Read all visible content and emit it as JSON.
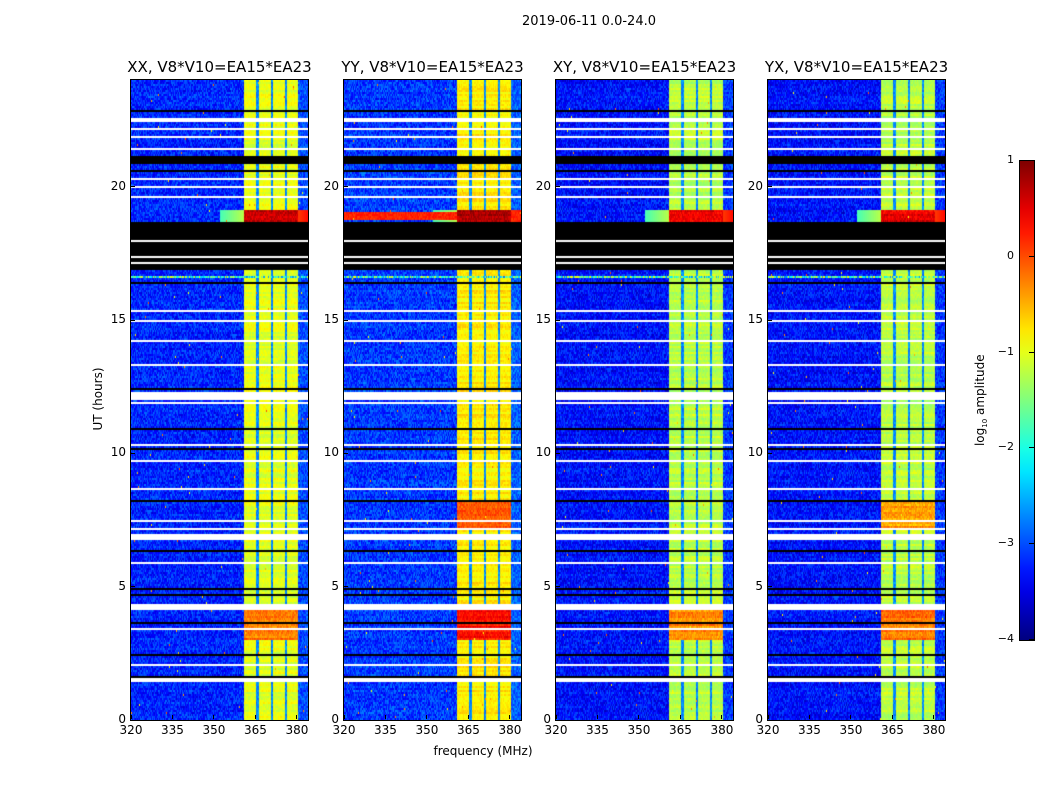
{
  "figure": {
    "suptitle": "2019-06-11 0.0-24.0",
    "xlabel": "frequency (MHz)",
    "ylabel": "UT (hours)"
  },
  "chart_data": {
    "type": "heatmap",
    "title": "2019-06-11 0.0-24.0",
    "xlabel": "frequency (MHz)",
    "ylabel": "UT (hours)",
    "xlim": [
      320,
      384
    ],
    "ylim": [
      0,
      24
    ],
    "xticks": [
      "320",
      "335",
      "350",
      "365",
      "380"
    ],
    "xtick_values": [
      320,
      335,
      350,
      365,
      380
    ],
    "yticks": [
      "0",
      "5",
      "10",
      "15",
      "20"
    ],
    "ytick_values": [
      0,
      5,
      10,
      15,
      20
    ],
    "colorbar": {
      "label": "log10 amplitude",
      "label_main": "log",
      "label_sub": "10",
      "label_rest": " amplitude",
      "range": [
        -4,
        1
      ],
      "ticks": [
        "1",
        "0",
        "−1",
        "−2",
        "−3",
        "−4"
      ],
      "tick_values": [
        1,
        0,
        -1,
        -2,
        -3,
        -4
      ],
      "colormap": "jet"
    },
    "panels": [
      {
        "title": "XX, V8*V10=EA15*EA23",
        "pol": "XX",
        "background_level": -3.2,
        "band_level": -1.0,
        "hot_ranges": [
          [
            18.7,
            19.1,
            0.6
          ],
          [
            3.0,
            4.1,
            -0.2
          ]
        ]
      },
      {
        "title": "YY, V8*V10=EA15*EA23",
        "pol": "YY",
        "background_level": -3.1,
        "band_level": -0.8,
        "hot_ranges": [
          [
            18.7,
            19.1,
            0.8
          ],
          [
            3.0,
            4.1,
            0.3
          ],
          [
            7.2,
            8.2,
            0.0
          ]
        ]
      },
      {
        "title": "XY, V8*V10=EA15*EA23",
        "pol": "XY",
        "background_level": -3.3,
        "band_level": -1.2,
        "hot_ranges": [
          [
            18.7,
            19.1,
            0.4
          ],
          [
            3.0,
            4.1,
            -0.3
          ]
        ]
      },
      {
        "title": "YX, V8*V10=EA15*EA23",
        "pol": "YX",
        "background_level": -3.3,
        "band_level": -1.2,
        "hot_ranges": [
          [
            18.7,
            19.1,
            0.5
          ],
          [
            3.0,
            4.1,
            -0.2
          ],
          [
            7.2,
            8.2,
            -0.4
          ]
        ]
      }
    ],
    "rfi_band_mhz": [
      360.7,
      380.4
    ],
    "channel_gaps_mhz": [
      365.8,
      370.9,
      376.0
    ],
    "flagged_white_hours": [
      [
        22.45,
        22.55
      ],
      [
        22.15,
        22.22
      ],
      [
        21.85,
        21.92
      ],
      [
        21.4,
        21.47
      ],
      [
        20.28,
        20.36
      ],
      [
        19.95,
        20.02
      ],
      [
        19.55,
        19.62
      ],
      [
        15.3,
        15.38
      ],
      [
        14.95,
        15.02
      ],
      [
        14.2,
        14.27
      ],
      [
        13.3,
        13.37
      ],
      [
        12.0,
        12.3
      ],
      [
        11.85,
        11.92
      ],
      [
        10.3,
        10.37
      ],
      [
        9.7,
        9.77
      ],
      [
        8.6,
        8.67
      ],
      [
        7.45,
        7.52
      ],
      [
        7.1,
        7.17
      ],
      [
        6.75,
        7.0
      ],
      [
        5.85,
        5.92
      ],
      [
        4.1,
        4.35
      ],
      [
        3.35,
        3.42
      ],
      [
        2.0,
        2.07
      ],
      [
        1.45,
        1.55
      ]
    ],
    "flagged_black_hours": [
      [
        22.78,
        22.86
      ],
      [
        20.85,
        21.15
      ],
      [
        20.55,
        20.62
      ],
      [
        16.9,
        18.65
      ],
      [
        16.35,
        16.42
      ],
      [
        12.4,
        12.47
      ],
      [
        10.9,
        10.97
      ],
      [
        10.15,
        10.22
      ],
      [
        8.2,
        8.27
      ],
      [
        6.3,
        6.37
      ],
      [
        4.9,
        4.97
      ],
      [
        4.65,
        4.72
      ],
      [
        3.6,
        3.67
      ],
      [
        2.4,
        2.47
      ],
      [
        1.6,
        1.67
      ]
    ],
    "black_block_white_stripes_hours": [
      [
        18.2,
        18.25
      ],
      [
        17.95,
        18.0
      ],
      [
        17.75,
        17.8
      ],
      [
        17.35,
        17.4
      ],
      [
        17.1,
        17.15
      ]
    ],
    "speckled_row_hour": 16.6
  }
}
